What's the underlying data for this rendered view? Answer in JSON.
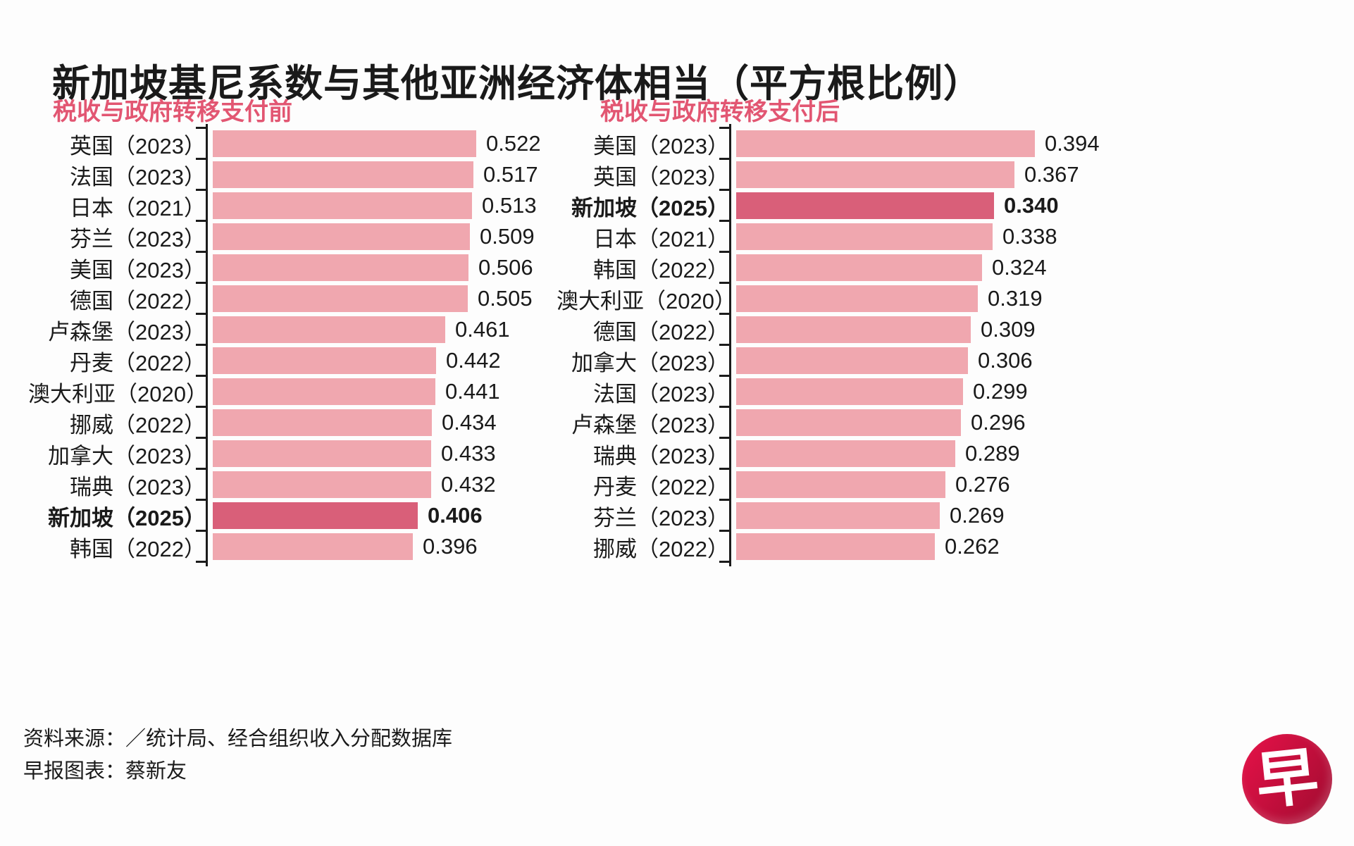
{
  "title": "新加坡基尼系数与其他亚洲经济体相当（平方根比例）",
  "colors": {
    "bar": "#f0a7af",
    "bar_highlight": "#d95f79",
    "subtitle_pink": "#e25672",
    "axis": "#1b1b1b",
    "logo_red": "#c50f3c",
    "text": "#1a1a1a"
  },
  "chart_data": [
    {
      "type": "bar",
      "orientation": "horizontal",
      "title": "税收与政府转移支付前",
      "categories": [
        "英国（2023）",
        "法国（2023）",
        "日本（2021）",
        "芬兰（2023）",
        "美国（2023）",
        "德国（2022）",
        "卢森堡（2023）",
        "丹麦（2022）",
        "澳大利亚（2020）",
        "挪威（2022）",
        "加拿大（2023）",
        "瑞典（2023）",
        "新加坡（2025）",
        "韩国（2022）"
      ],
      "values": [
        0.522,
        0.517,
        0.513,
        0.509,
        0.506,
        0.505,
        0.461,
        0.442,
        0.441,
        0.434,
        0.433,
        0.432,
        0.406,
        0.396
      ],
      "value_labels": [
        "0.522",
        "0.517",
        "0.513",
        "0.509",
        "0.506",
        "0.505",
        "0.461",
        "0.442",
        "0.441",
        "0.434",
        "0.433",
        "0.432",
        "0.406",
        "0.396"
      ],
      "highlight_category": "新加坡（2025）",
      "xlim": [
        0,
        0.522
      ],
      "grid": false,
      "legend": "none"
    },
    {
      "type": "bar",
      "orientation": "horizontal",
      "title": "税收与政府转移支付后",
      "categories": [
        "美国（2023）",
        "英国（2023）",
        "新加坡（2025）",
        "日本（2021）",
        "韩国（2022）",
        "澳大利亚（2020）",
        "德国（2022）",
        "加拿大（2023）",
        "法国（2023）",
        "卢森堡（2023）",
        "瑞典（2023）",
        "丹麦（2022）",
        "芬兰（2023）",
        "挪威（2022）"
      ],
      "values": [
        0.394,
        0.367,
        0.34,
        0.338,
        0.324,
        0.319,
        0.309,
        0.306,
        0.299,
        0.296,
        0.289,
        0.276,
        0.269,
        0.262
      ],
      "value_labels": [
        "0.394",
        "0.367",
        "0.340",
        "0.338",
        "0.324",
        "0.319",
        "0.309",
        "0.306",
        "0.299",
        "0.296",
        "0.289",
        "0.276",
        "0.269",
        "0.262"
      ],
      "highlight_category": "新加坡（2025）",
      "xlim": [
        0,
        0.394
      ],
      "grid": false,
      "legend": "none"
    }
  ],
  "footer": {
    "source_line": "资料来源：／统计局、经合组织收入分配数据库",
    "credit_line": "早报图表：蔡新友"
  },
  "logo": {
    "glyph": "早"
  }
}
